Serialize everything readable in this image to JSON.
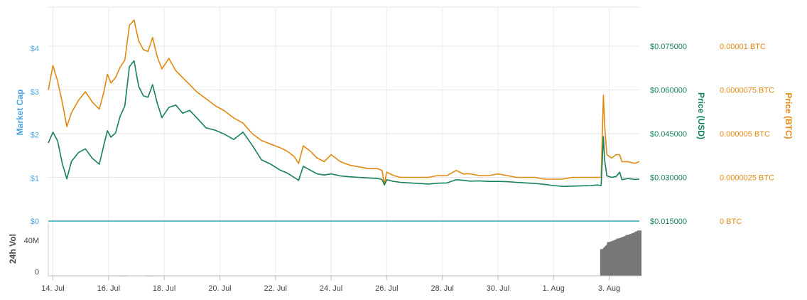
{
  "chart_data": {
    "type": "line",
    "x_axis": {
      "ticks": [
        "14. Jul",
        "16. Jul",
        "18. Jul",
        "20. Jul",
        "22. Jul",
        "24. Jul",
        "26. Jul",
        "28. Jul",
        "30. Jul",
        "1. Aug",
        "3. Aug"
      ],
      "range": [
        "2018-07-13T20:00",
        "2018-08-04T02:00"
      ]
    },
    "axes": {
      "market_cap": {
        "label": "Market Cap",
        "ticks": [
          "$0",
          "$1",
          "$2",
          "$3",
          "$4"
        ],
        "color": "#4aa3df"
      },
      "price_usd": {
        "label": "Price (USD)",
        "ticks": [
          "$0.015000",
          "$0.030000",
          "$0.045000",
          "$0.060000",
          "$0.075000"
        ],
        "range": [
          0.015,
          0.075
        ],
        "color": "#15805a"
      },
      "price_btc": {
        "label": "Price (BTC)",
        "ticks": [
          "0 BTC",
          "0.0000025 BTC",
          "0.000005 BTC",
          "0.0000075 BTC",
          "0.00001 BTC"
        ],
        "range": [
          0,
          1e-05
        ],
        "color": "#e2880e"
      },
      "volume": {
        "label": "24h Vol",
        "ticks": [
          "0",
          "40M"
        ],
        "range": [
          0,
          60000000
        ]
      }
    },
    "series": [
      {
        "name": "Price (USD)",
        "color": "#15805a",
        "points": [
          [
            "2018-07-13T20:00",
            0.0418
          ],
          [
            "2018-07-14T00:00",
            0.0455
          ],
          [
            "2018-07-14T04:00",
            0.0425
          ],
          [
            "2018-07-14T08:00",
            0.0348
          ],
          [
            "2018-07-14T12:00",
            0.0295
          ],
          [
            "2018-07-14T16:00",
            0.0355
          ],
          [
            "2018-07-14T22:00",
            0.0385
          ],
          [
            "2018-07-15T04:00",
            0.0398
          ],
          [
            "2018-07-15T10:00",
            0.0365
          ],
          [
            "2018-07-15T16:00",
            0.0345
          ],
          [
            "2018-07-15T20:00",
            0.0412
          ],
          [
            "2018-07-15T23:00",
            0.046
          ],
          [
            "2018-07-16T02:00",
            0.0438
          ],
          [
            "2018-07-16T06:00",
            0.0452
          ],
          [
            "2018-07-16T10:00",
            0.051
          ],
          [
            "2018-07-16T14:00",
            0.0545
          ],
          [
            "2018-07-16T18:00",
            0.068
          ],
          [
            "2018-07-16T22:00",
            0.07
          ],
          [
            "2018-07-17T02:00",
            0.0612
          ],
          [
            "2018-07-17T06:00",
            0.058
          ],
          [
            "2018-07-17T10:00",
            0.0575
          ],
          [
            "2018-07-17T14:00",
            0.0618
          ],
          [
            "2018-07-17T18:00",
            0.0555
          ],
          [
            "2018-07-17T22:00",
            0.0505
          ],
          [
            "2018-07-18T04:00",
            0.054
          ],
          [
            "2018-07-18T10:00",
            0.0548
          ],
          [
            "2018-07-18T16:00",
            0.052
          ],
          [
            "2018-07-18T22:00",
            0.053
          ],
          [
            "2018-07-19T04:00",
            0.0505
          ],
          [
            "2018-07-19T12:00",
            0.047
          ],
          [
            "2018-07-19T20:00",
            0.0462
          ],
          [
            "2018-07-20T04:00",
            0.0448
          ],
          [
            "2018-07-20T12:00",
            0.043
          ],
          [
            "2018-07-20T20:00",
            0.0455
          ],
          [
            "2018-07-21T04:00",
            0.041
          ],
          [
            "2018-07-21T12:00",
            0.036
          ],
          [
            "2018-07-21T20:00",
            0.0345
          ],
          [
            "2018-07-22T04:00",
            0.0325
          ],
          [
            "2018-07-22T10:00",
            0.0315
          ],
          [
            "2018-07-22T16:00",
            0.03
          ],
          [
            "2018-07-22T20:00",
            0.029
          ],
          [
            "2018-07-23T00:00",
            0.0338
          ],
          [
            "2018-07-23T06:00",
            0.0325
          ],
          [
            "2018-07-23T12:00",
            0.0312
          ],
          [
            "2018-07-23T18:00",
            0.0308
          ],
          [
            "2018-07-24T00:00",
            0.0312
          ],
          [
            "2018-07-24T08:00",
            0.0305
          ],
          [
            "2018-07-24T16:00",
            0.0302
          ],
          [
            "2018-07-25T00:00",
            0.03
          ],
          [
            "2018-07-25T08:00",
            0.0298
          ],
          [
            "2018-07-25T16:00",
            0.0296
          ],
          [
            "2018-07-25T20:00",
            0.0293
          ],
          [
            "2018-07-25T22:00",
            0.0274
          ],
          [
            "2018-07-26T00:00",
            0.0292
          ],
          [
            "2018-07-26T06:00",
            0.0286
          ],
          [
            "2018-07-26T12:00",
            0.0283
          ],
          [
            "2018-07-26T20:00",
            0.0281
          ],
          [
            "2018-07-27T04:00",
            0.0279
          ],
          [
            "2018-07-27T12:00",
            0.0277
          ],
          [
            "2018-07-27T20:00",
            0.028
          ],
          [
            "2018-07-28T04:00",
            0.0281
          ],
          [
            "2018-07-28T12:00",
            0.0292
          ],
          [
            "2018-07-28T18:00",
            0.029
          ],
          [
            "2018-07-29T00:00",
            0.0287
          ],
          [
            "2018-07-29T08:00",
            0.0288
          ],
          [
            "2018-07-29T16:00",
            0.0286
          ],
          [
            "2018-07-30T00:00",
            0.0286
          ],
          [
            "2018-07-30T08:00",
            0.0285
          ],
          [
            "2018-07-30T16:00",
            0.0283
          ],
          [
            "2018-07-31T00:00",
            0.0281
          ],
          [
            "2018-07-31T08:00",
            0.0279
          ],
          [
            "2018-07-31T16:00",
            0.0276
          ],
          [
            "2018-08-01T00:00",
            0.0272
          ],
          [
            "2018-08-01T08:00",
            0.0269
          ],
          [
            "2018-08-01T16:00",
            0.027
          ],
          [
            "2018-08-02T00:00",
            0.0271
          ],
          [
            "2018-08-02T08:00",
            0.0272
          ],
          [
            "2018-08-02T14:00",
            0.0274
          ],
          [
            "2018-08-02T17:00",
            0.0272
          ],
          [
            "2018-08-02T19:00",
            0.044
          ],
          [
            "2018-08-02T20:00",
            0.036
          ],
          [
            "2018-08-02T22:00",
            0.0305
          ],
          [
            "2018-08-03T02:00",
            0.03
          ],
          [
            "2018-08-03T06:00",
            0.0303
          ],
          [
            "2018-08-03T09:00",
            0.0318
          ],
          [
            "2018-08-03T11:00",
            0.0292
          ],
          [
            "2018-08-03T16:00",
            0.0296
          ],
          [
            "2018-08-03T22:00",
            0.0293
          ],
          [
            "2018-08-04T02:00",
            0.0294
          ]
        ]
      },
      {
        "name": "Price (BTC)",
        "color": "#e2880e",
        "points": [
          [
            "2018-07-13T20:00",
            7.5e-06
          ],
          [
            "2018-07-14T00:00",
            8.9e-06
          ],
          [
            "2018-07-14T04:00",
            8e-06
          ],
          [
            "2018-07-14T08:00",
            6.8e-06
          ],
          [
            "2018-07-14T12:00",
            5.4e-06
          ],
          [
            "2018-07-14T16:00",
            6.2e-06
          ],
          [
            "2018-07-14T22:00",
            6.9e-06
          ],
          [
            "2018-07-15T04:00",
            7.4e-06
          ],
          [
            "2018-07-15T10:00",
            6.8e-06
          ],
          [
            "2018-07-15T16:00",
            6.4e-06
          ],
          [
            "2018-07-15T20:00",
            7.4e-06
          ],
          [
            "2018-07-15T23:00",
            8.4e-06
          ],
          [
            "2018-07-16T02:00",
            7.9e-06
          ],
          [
            "2018-07-16T06:00",
            8.2e-06
          ],
          [
            "2018-07-16T10:00",
            8.8e-06
          ],
          [
            "2018-07-16T14:00",
            9.2e-06
          ],
          [
            "2018-07-16T18:00",
            1.12e-05
          ],
          [
            "2018-07-16T22:00",
            1.15e-05
          ],
          [
            "2018-07-17T02:00",
            1.03e-05
          ],
          [
            "2018-07-17T06:00",
            9.8e-06
          ],
          [
            "2018-07-17T10:00",
            9.7e-06
          ],
          [
            "2018-07-17T14:00",
            1.05e-05
          ],
          [
            "2018-07-17T18:00",
            9.4e-06
          ],
          [
            "2018-07-17T22:00",
            8.7e-06
          ],
          [
            "2018-07-18T04:00",
            9.3e-06
          ],
          [
            "2018-07-18T10:00",
            8.6e-06
          ],
          [
            "2018-07-18T16:00",
            8.2e-06
          ],
          [
            "2018-07-18T22:00",
            7.8e-06
          ],
          [
            "2018-07-19T04:00",
            7.4e-06
          ],
          [
            "2018-07-19T12:00",
            7e-06
          ],
          [
            "2018-07-19T20:00",
            6.6e-06
          ],
          [
            "2018-07-20T04:00",
            6.3e-06
          ],
          [
            "2018-07-20T12:00",
            5.9e-06
          ],
          [
            "2018-07-20T20:00",
            5.6e-06
          ],
          [
            "2018-07-21T04:00",
            5e-06
          ],
          [
            "2018-07-21T12:00",
            4.6e-06
          ],
          [
            "2018-07-21T20:00",
            4.4e-06
          ],
          [
            "2018-07-22T04:00",
            4.2e-06
          ],
          [
            "2018-07-22T10:00",
            4e-06
          ],
          [
            "2018-07-22T16:00",
            3.7e-06
          ],
          [
            "2018-07-22T20:00",
            3.3e-06
          ],
          [
            "2018-07-23T00:00",
            4.3e-06
          ],
          [
            "2018-07-23T06:00",
            4e-06
          ],
          [
            "2018-07-23T12:00",
            3.6e-06
          ],
          [
            "2018-07-23T18:00",
            3.4e-06
          ],
          [
            "2018-07-24T00:00",
            3.8e-06
          ],
          [
            "2018-07-24T08:00",
            3.4e-06
          ],
          [
            "2018-07-24T16:00",
            3.2e-06
          ],
          [
            "2018-07-25T00:00",
            3.1e-06
          ],
          [
            "2018-07-25T08:00",
            3e-06
          ],
          [
            "2018-07-25T16:00",
            3e-06
          ],
          [
            "2018-07-25T20:00",
            2.9e-06
          ],
          [
            "2018-07-25T22:00",
            2.1e-06
          ],
          [
            "2018-07-26T00:00",
            2.8e-06
          ],
          [
            "2018-07-26T06:00",
            2.6e-06
          ],
          [
            "2018-07-26T12:00",
            2.5e-06
          ],
          [
            "2018-07-26T20:00",
            2.5e-06
          ],
          [
            "2018-07-27T04:00",
            2.5e-06
          ],
          [
            "2018-07-27T12:00",
            2.5e-06
          ],
          [
            "2018-07-27T20:00",
            2.6e-06
          ],
          [
            "2018-07-28T04:00",
            2.6e-06
          ],
          [
            "2018-07-28T12:00",
            2.9e-06
          ],
          [
            "2018-07-28T18:00",
            2.7e-06
          ],
          [
            "2018-07-29T00:00",
            2.7e-06
          ],
          [
            "2018-07-29T08:00",
            2.6e-06
          ],
          [
            "2018-07-29T16:00",
            2.6e-06
          ],
          [
            "2018-07-30T00:00",
            2.7e-06
          ],
          [
            "2018-07-30T08:00",
            2.6e-06
          ],
          [
            "2018-07-30T16:00",
            2.5e-06
          ],
          [
            "2018-07-31T00:00",
            2.5e-06
          ],
          [
            "2018-07-31T08:00",
            2.5e-06
          ],
          [
            "2018-07-31T16:00",
            2.4e-06
          ],
          [
            "2018-08-01T00:00",
            2.4e-06
          ],
          [
            "2018-08-01T08:00",
            2.4e-06
          ],
          [
            "2018-08-01T16:00",
            2.5e-06
          ],
          [
            "2018-08-02T00:00",
            2.5e-06
          ],
          [
            "2018-08-02T08:00",
            2.5e-06
          ],
          [
            "2018-08-02T14:00",
            2.5e-06
          ],
          [
            "2018-08-02T17:00",
            2.5e-06
          ],
          [
            "2018-08-02T19:00",
            7.2e-06
          ],
          [
            "2018-08-02T20:00",
            5.5e-06
          ],
          [
            "2018-08-02T22:00",
            3.8e-06
          ],
          [
            "2018-08-03T02:00",
            3.6e-06
          ],
          [
            "2018-08-03T06:00",
            3.8e-06
          ],
          [
            "2018-08-03T09:00",
            3.8e-06
          ],
          [
            "2018-08-03T11:00",
            3.4e-06
          ],
          [
            "2018-08-03T16:00",
            3.4e-06
          ],
          [
            "2018-08-03T22:00",
            3.3e-06
          ],
          [
            "2018-08-04T02:00",
            3.4e-06
          ]
        ]
      }
    ],
    "volume": {
      "color": "#777777",
      "points": [
        [
          "2018-07-16T12:00",
          300000
        ],
        [
          "2018-07-17T12:00",
          300000
        ],
        [
          "2018-08-02T18:00",
          30000000
        ],
        [
          "2018-08-03T00:00",
          38000000
        ],
        [
          "2018-08-03T08:00",
          42000000
        ],
        [
          "2018-08-03T16:00",
          46000000
        ],
        [
          "2018-08-04T00:00",
          50000000
        ],
        [
          "2018-08-04T02:00",
          51000000
        ]
      ]
    },
    "grid": true
  }
}
